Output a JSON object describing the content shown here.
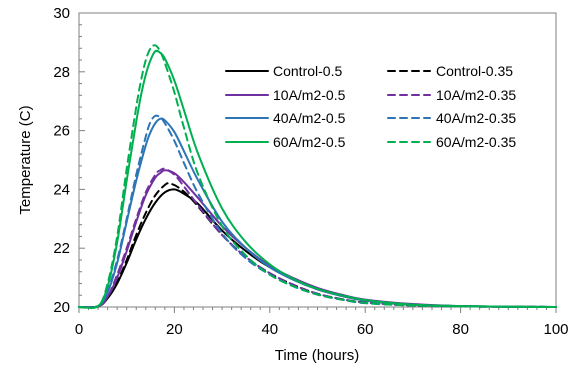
{
  "chart_data": {
    "type": "line",
    "title": "",
    "xlabel": "Time (hours)",
    "ylabel": "Temperature (C)",
    "xlim": [
      0,
      100
    ],
    "ylim": [
      20,
      30
    ],
    "x_ticks": [
      0,
      20,
      40,
      60,
      80,
      100
    ],
    "y_ticks": [
      20,
      22,
      24,
      26,
      28,
      30
    ],
    "x_minor_ticks": [
      2,
      4,
      6,
      8,
      10,
      12,
      14,
      16,
      18,
      22,
      24,
      26,
      28,
      30,
      32,
      34,
      36,
      38,
      42,
      44,
      46,
      48,
      50,
      52,
      54,
      56,
      58,
      62,
      64,
      66,
      68,
      70,
      72,
      74,
      76,
      78,
      82,
      84,
      86,
      88,
      90,
      92,
      94,
      96,
      98
    ],
    "y_minor_ticks": [
      20.4,
      20.8,
      21.2,
      21.6,
      22.4,
      22.8,
      23.2,
      23.6,
      24.4,
      24.8,
      25.2,
      25.6,
      26.4,
      26.8,
      27.2,
      27.6,
      28.4,
      28.8,
      29.2,
      29.6
    ],
    "grid": false,
    "legend_position": "top-right",
    "series": [
      {
        "name": "Control-0.5",
        "color": "#000000",
        "dash": "solid",
        "points": [
          [
            0,
            20
          ],
          [
            4,
            20.02
          ],
          [
            6,
            20.3
          ],
          [
            8,
            20.8
          ],
          [
            10,
            21.5
          ],
          [
            12,
            22.3
          ],
          [
            14,
            23.0
          ],
          [
            16,
            23.55
          ],
          [
            18,
            23.9
          ],
          [
            20,
            24.0
          ],
          [
            22,
            23.85
          ],
          [
            25,
            23.5
          ],
          [
            30,
            22.6
          ],
          [
            35,
            21.9
          ],
          [
            40,
            21.35
          ],
          [
            45,
            20.95
          ],
          [
            50,
            20.6
          ],
          [
            55,
            20.38
          ],
          [
            60,
            20.22
          ],
          [
            70,
            20.08
          ],
          [
            80,
            20.03
          ],
          [
            90,
            20.01
          ],
          [
            100,
            20.0
          ]
        ]
      },
      {
        "name": "Control-0.35",
        "color": "#000000",
        "dash": "dashed",
        "points": [
          [
            0,
            20
          ],
          [
            4,
            20.02
          ],
          [
            6,
            20.3
          ],
          [
            8,
            20.85
          ],
          [
            10,
            21.6
          ],
          [
            12,
            22.45
          ],
          [
            14,
            23.2
          ],
          [
            16,
            23.8
          ],
          [
            18,
            24.15
          ],
          [
            19,
            24.2
          ],
          [
            21,
            24.05
          ],
          [
            24,
            23.6
          ],
          [
            30,
            22.45
          ],
          [
            35,
            21.7
          ],
          [
            40,
            21.15
          ],
          [
            45,
            20.75
          ],
          [
            50,
            20.45
          ],
          [
            55,
            20.27
          ],
          [
            60,
            20.15
          ],
          [
            70,
            20.05
          ],
          [
            80,
            20.02
          ],
          [
            90,
            20.01
          ],
          [
            100,
            20.0
          ]
        ]
      },
      {
        "name": "10A/m2-0.5",
        "color": "#7030a0",
        "dash": "solid",
        "points": [
          [
            0,
            20
          ],
          [
            4,
            20.02
          ],
          [
            6,
            20.35
          ],
          [
            8,
            21.0
          ],
          [
            10,
            21.9
          ],
          [
            12,
            22.9
          ],
          [
            14,
            23.8
          ],
          [
            16,
            24.4
          ],
          [
            17,
            24.55
          ],
          [
            18,
            24.65
          ],
          [
            20,
            24.55
          ],
          [
            22,
            24.25
          ],
          [
            25,
            23.7
          ],
          [
            30,
            22.75
          ],
          [
            35,
            22.0
          ],
          [
            40,
            21.4
          ],
          [
            45,
            20.98
          ],
          [
            50,
            20.65
          ],
          [
            55,
            20.42
          ],
          [
            60,
            20.25
          ],
          [
            70,
            20.1
          ],
          [
            80,
            20.03
          ],
          [
            90,
            20.01
          ],
          [
            100,
            20.0
          ]
        ]
      },
      {
        "name": "10A/m2-0.35",
        "color": "#7030a0",
        "dash": "dashed",
        "points": [
          [
            0,
            20
          ],
          [
            4,
            20.02
          ],
          [
            6,
            20.35
          ],
          [
            8,
            21.1
          ],
          [
            10,
            22.0
          ],
          [
            12,
            23.0
          ],
          [
            14,
            23.9
          ],
          [
            16,
            24.5
          ],
          [
            17,
            24.65
          ],
          [
            18,
            24.7
          ],
          [
            20,
            24.5
          ],
          [
            22,
            24.1
          ],
          [
            25,
            23.45
          ],
          [
            30,
            22.45
          ],
          [
            35,
            21.7
          ],
          [
            40,
            21.15
          ],
          [
            45,
            20.75
          ],
          [
            50,
            20.45
          ],
          [
            55,
            20.27
          ],
          [
            60,
            20.15
          ],
          [
            70,
            20.05
          ],
          [
            80,
            20.02
          ],
          [
            90,
            20.01
          ],
          [
            100,
            20.0
          ]
        ]
      },
      {
        "name": "40A/m2-0.5",
        "color": "#2e75b6",
        "dash": "solid",
        "points": [
          [
            0,
            20
          ],
          [
            4,
            20.03
          ],
          [
            6,
            20.5
          ],
          [
            8,
            21.5
          ],
          [
            10,
            22.9
          ],
          [
            12,
            24.3
          ],
          [
            14,
            25.5
          ],
          [
            15,
            25.95
          ],
          [
            16,
            26.25
          ],
          [
            17,
            26.4
          ],
          [
            18,
            26.35
          ],
          [
            20,
            25.95
          ],
          [
            22,
            25.3
          ],
          [
            25,
            24.3
          ],
          [
            30,
            22.9
          ],
          [
            35,
            22.0
          ],
          [
            40,
            21.35
          ],
          [
            45,
            20.92
          ],
          [
            50,
            20.6
          ],
          [
            55,
            20.38
          ],
          [
            60,
            20.22
          ],
          [
            70,
            20.08
          ],
          [
            80,
            20.03
          ],
          [
            90,
            20.01
          ],
          [
            100,
            20.0
          ]
        ]
      },
      {
        "name": "40A/m2-0.35",
        "color": "#2e75b6",
        "dash": "dashed",
        "points": [
          [
            0,
            20
          ],
          [
            4,
            20.03
          ],
          [
            6,
            20.55
          ],
          [
            8,
            21.6
          ],
          [
            10,
            23.0
          ],
          [
            12,
            24.5
          ],
          [
            14,
            25.8
          ],
          [
            15,
            26.3
          ],
          [
            16,
            26.5
          ],
          [
            17,
            26.45
          ],
          [
            18,
            26.25
          ],
          [
            20,
            25.65
          ],
          [
            22,
            24.9
          ],
          [
            25,
            23.85
          ],
          [
            30,
            22.5
          ],
          [
            35,
            21.65
          ],
          [
            40,
            21.1
          ],
          [
            45,
            20.7
          ],
          [
            50,
            20.42
          ],
          [
            55,
            20.25
          ],
          [
            60,
            20.13
          ],
          [
            70,
            20.05
          ],
          [
            80,
            20.02
          ],
          [
            90,
            20.01
          ],
          [
            100,
            20.0
          ]
        ]
      },
      {
        "name": "60A/m2-0.5",
        "color": "#00b050",
        "dash": "solid",
        "points": [
          [
            0,
            20
          ],
          [
            4,
            20.03
          ],
          [
            6,
            20.7
          ],
          [
            8,
            22.2
          ],
          [
            10,
            24.3
          ],
          [
            12,
            26.3
          ],
          [
            13,
            27.2
          ],
          [
            14,
            27.9
          ],
          [
            15,
            28.4
          ],
          [
            16,
            28.7
          ],
          [
            17,
            28.65
          ],
          [
            18,
            28.45
          ],
          [
            20,
            27.7
          ],
          [
            22,
            26.7
          ],
          [
            25,
            25.2
          ],
          [
            30,
            23.35
          ],
          [
            35,
            22.2
          ],
          [
            40,
            21.45
          ],
          [
            45,
            20.95
          ],
          [
            50,
            20.62
          ],
          [
            55,
            20.4
          ],
          [
            60,
            20.24
          ],
          [
            70,
            20.08
          ],
          [
            80,
            20.03
          ],
          [
            90,
            20.01
          ],
          [
            100,
            20.0
          ]
        ]
      },
      {
        "name": "60A/m2-0.35",
        "color": "#00b050",
        "dash": "dashed",
        "points": [
          [
            0,
            20
          ],
          [
            4,
            20.03
          ],
          [
            6,
            20.8
          ],
          [
            8,
            22.4
          ],
          [
            10,
            24.7
          ],
          [
            12,
            26.8
          ],
          [
            13,
            27.7
          ],
          [
            14,
            28.4
          ],
          [
            15,
            28.8
          ],
          [
            16,
            28.9
          ],
          [
            17,
            28.7
          ],
          [
            18,
            28.3
          ],
          [
            20,
            27.3
          ],
          [
            22,
            26.1
          ],
          [
            25,
            24.5
          ],
          [
            30,
            22.75
          ],
          [
            35,
            21.75
          ],
          [
            40,
            21.1
          ],
          [
            45,
            20.7
          ],
          [
            50,
            20.43
          ],
          [
            55,
            20.26
          ],
          [
            60,
            20.14
          ],
          [
            70,
            20.05
          ],
          [
            80,
            20.02
          ],
          [
            90,
            20.01
          ],
          [
            100,
            20.0
          ]
        ]
      }
    ]
  }
}
